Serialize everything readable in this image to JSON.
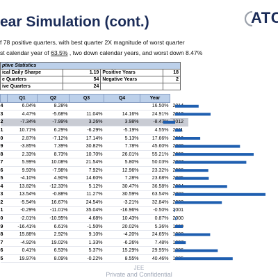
{
  "title": "ear Simulation (cont.)",
  "logo": "ATC",
  "bullets": [
    {
      "pre": "f 78 positive quarters, with best quarter 2X magnitude of worst quarter",
      "u": "",
      "post": ""
    },
    {
      "pre": "st calendar year of ",
      "u": "63.5%",
      "post": " , two down calendar years, and worst down 8.47%"
    }
  ],
  "stats": {
    "header": "ptive Statistics",
    "rows": [
      {
        "l1": "ical Daily Sharpe",
        "v1": "1.19",
        "l2": "Positive Years",
        "v2": "18"
      },
      {
        "l1": "e Quarters",
        "v1": "54",
        "l2": "Negative Years",
        "v2": "2"
      },
      {
        "l1": "ive Quarters",
        "v1": "24",
        "l2": "",
        "v2": ""
      }
    ]
  },
  "quarter_table": {
    "headers": [
      "",
      "Q1",
      "Q2",
      "Q3",
      "Q4",
      "Year"
    ],
    "rows": [
      {
        "c": "4",
        "q1": "6.04%",
        "q2": "8.28%",
        "q3": "",
        "q4": "",
        "yr": "16.50%",
        "year": "2014"
      },
      {
        "c": "3",
        "q1": "4.47%",
        "q2": "-5.68%",
        "q3": "11.04%",
        "q4": "14.16%",
        "yr": "24.91%",
        "year": "2013"
      },
      {
        "c": "2",
        "q1": "-7.34%",
        "q2": "-7.99%",
        "q3": "3.26%",
        "q4": "3.98%",
        "yr": "-8.47%",
        "year": "2012"
      },
      {
        "c": "1",
        "q1": "10.71%",
        "q2": "6.29%",
        "q3": "-6.29%",
        "q4": "-5.19%",
        "yr": "4.55%",
        "year": "2011"
      },
      {
        "c": "0",
        "q1": "2.87%",
        "q2": "-7.12%",
        "q3": "17.14%",
        "q4": "5.13%",
        "yr": "17.66%",
        "year": "2010"
      },
      {
        "c": "9",
        "q1": "-3.85%",
        "q2": "7.39%",
        "q3": "30.82%",
        "q4": "7.78%",
        "yr": "45.60%",
        "year": "2009"
      },
      {
        "c": "8",
        "q1": "2.33%",
        "q2": "8.73%",
        "q3": "10.70%",
        "q4": "26.01%",
        "yr": "55.21%",
        "year": "2008"
      },
      {
        "c": "7",
        "q1": "5.99%",
        "q2": "10.08%",
        "q3": "21.54%",
        "q4": "5.80%",
        "yr": "50.03%",
        "year": "2007"
      },
      {
        "c": "6",
        "q1": "9.93%",
        "q2": "-7.98%",
        "q3": "7.92%",
        "q4": "12.96%",
        "yr": "23.32%",
        "year": "2006"
      },
      {
        "c": "5",
        "q1": "-4.10%",
        "q2": "4.90%",
        "q3": "14.60%",
        "q4": "7.28%",
        "yr": "23.68%",
        "year": "2005"
      },
      {
        "c": "4",
        "q1": "13.82%",
        "q2": "-12.33%",
        "q3": "5.12%",
        "q4": "30.47%",
        "yr": "36.58%",
        "year": "2004"
      },
      {
        "c": "3",
        "q1": "13.54%",
        "q2": "-0.88%",
        "q3": "11.27%",
        "q4": "30.59%",
        "yr": "63.54%",
        "year": "2003"
      },
      {
        "c": "2",
        "q1": "-5.54%",
        "q2": "16.67%",
        "q3": "24.54%",
        "q4": "-3.21%",
        "yr": "32.84%",
        "year": "2002"
      },
      {
        "c": "1",
        "q1": "-0.29%",
        "q2": "-11.01%",
        "q3": "35.04%",
        "q4": "-16.96%",
        "yr": "-0.50%",
        "year": "2001"
      },
      {
        "c": "0",
        "q1": "-2.01%",
        "q2": "-10.95%",
        "q3": "4.68%",
        "q4": "10.43%",
        "yr": "0.87%",
        "year": "2000"
      },
      {
        "c": "9",
        "q1": "-16.41%",
        "q2": "6.61%",
        "q3": "-1.50%",
        "q4": "20.02%",
        "yr": "5.36%",
        "year": "1999"
      },
      {
        "c": "8",
        "q1": "15.88%",
        "q2": "2.92%",
        "q3": "9.10%",
        "q4": "-4.20%",
        "yr": "24.65%",
        "year": "1998"
      },
      {
        "c": "7",
        "q1": "-4.92%",
        "q2": "19.02%",
        "q3": "1.33%",
        "q4": "-6.26%",
        "yr": "7.48%",
        "year": "1997"
      },
      {
        "c": "6",
        "q1": "0.41%",
        "q2": "6.53%",
        "q3": "5.37%",
        "q4": "15.29%",
        "yr": "29.95%",
        "year": "1996"
      },
      {
        "c": "5",
        "q1": "19.97%",
        "q2": "8.09%",
        "q3": "-0.22%",
        "q4": "8.55%",
        "yr": "40.46%",
        "year": "1995"
      }
    ]
  },
  "chart_data": {
    "type": "bar",
    "orientation": "horizontal",
    "categories": [
      "2014",
      "2013",
      "2012",
      "2011",
      "2010",
      "2009",
      "2008",
      "2007",
      "2006",
      "2005",
      "2004",
      "2003",
      "2002",
      "2001",
      "2000",
      "1999",
      "1998",
      "1997",
      "1996",
      "1995"
    ],
    "values": [
      16.5,
      24.91,
      -8.47,
      4.55,
      17.66,
      45.6,
      55.21,
      50.03,
      23.32,
      23.68,
      36.58,
      63.54,
      32.84,
      -0.5,
      0.87,
      5.36,
      24.65,
      7.48,
      29.95,
      40.46
    ],
    "bar_color": "#1f5fb0",
    "title": "",
    "xlabel": "",
    "ylabel": ""
  },
  "footer": {
    "line1": "JEE",
    "line2": "Private and Confidential"
  }
}
